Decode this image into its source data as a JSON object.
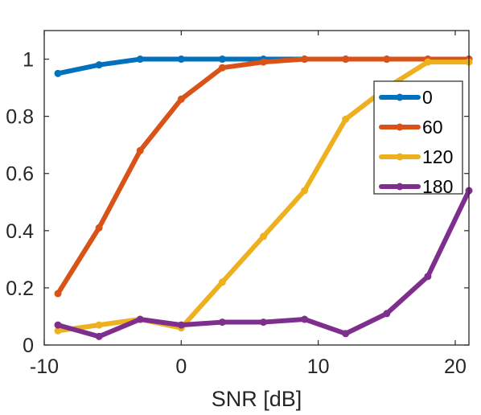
{
  "chart_data": {
    "type": "line",
    "title": "",
    "xlabel": "SNR [dB]",
    "ylabel": "",
    "xlim": [
      -10,
      21
    ],
    "ylim": [
      0,
      1.1
    ],
    "xticks": [
      -10,
      0,
      10,
      20
    ],
    "xtick_labels": [
      "-10",
      "0",
      "10",
      "20"
    ],
    "yticks": [
      0,
      0.2,
      0.4,
      0.6,
      0.8,
      1
    ],
    "ytick_labels": [
      "0",
      "0.2",
      "0.4",
      "0.6",
      "0.8",
      "1"
    ],
    "grid": false,
    "legend_position": "right",
    "x": [
      -9,
      -6,
      -3,
      0,
      3,
      6,
      9,
      12,
      15,
      18,
      21
    ],
    "series": [
      {
        "name": "0",
        "color": "#0072BD",
        "values": [
          0.95,
          0.98,
          1.0,
          1.0,
          1.0,
          1.0,
          1.0,
          1.0,
          1.0,
          1.0,
          1.0
        ]
      },
      {
        "name": "60",
        "color": "#D95319",
        "values": [
          0.18,
          0.41,
          0.68,
          0.86,
          0.97,
          0.99,
          1.0,
          1.0,
          1.0,
          1.0,
          1.0
        ]
      },
      {
        "name": "120",
        "color": "#EDB120",
        "values": [
          0.05,
          0.07,
          0.09,
          0.06,
          0.22,
          0.38,
          0.54,
          0.79,
          0.9,
          0.99,
          0.99
        ]
      },
      {
        "name": "180",
        "color": "#7E2F8E",
        "values": [
          0.07,
          0.03,
          0.09,
          0.07,
          0.08,
          0.08,
          0.09,
          0.04,
          0.11,
          0.24,
          0.54
        ]
      }
    ]
  }
}
